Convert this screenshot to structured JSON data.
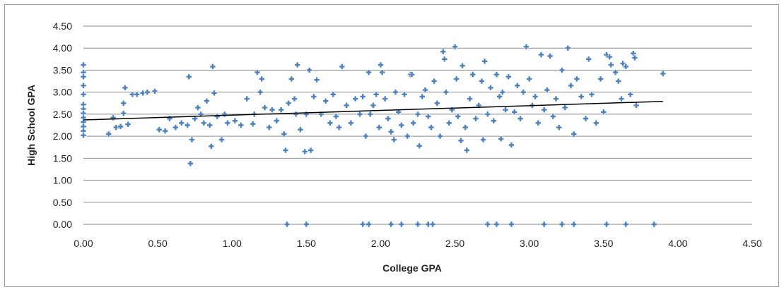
{
  "chart_data": {
    "type": "scatter",
    "xlabel": "College GPA",
    "ylabel": "High School GPA",
    "xlim": [
      0,
      4.5
    ],
    "ylim": [
      0,
      4.5
    ],
    "x_ticks": [
      "0.00",
      "0.50",
      "1.00",
      "1.50",
      "2.00",
      "2.50",
      "3.00",
      "3.50",
      "4.00",
      "4.50"
    ],
    "y_ticks": [
      "0.00",
      "0.50",
      "1.00",
      "1.50",
      "2.00",
      "2.50",
      "3.00",
      "3.50",
      "4.00",
      "4.50"
    ],
    "grid": "horizontal",
    "legend": "none",
    "marker_color": "#4f81bd",
    "trendline": {
      "color": "#000000",
      "x": [
        0,
        3.9
      ],
      "y": [
        2.37,
        2.79
      ]
    },
    "series": [
      {
        "points": [
          [
            0.0,
            3.62
          ],
          [
            0.0,
            3.45
          ],
          [
            0.0,
            3.35
          ],
          [
            0.0,
            3.15
          ],
          [
            0.0,
            2.95
          ],
          [
            0.0,
            2.72
          ],
          [
            0.0,
            2.62
          ],
          [
            0.0,
            2.52
          ],
          [
            0.0,
            2.42
          ],
          [
            0.0,
            2.32
          ],
          [
            0.0,
            2.22
          ],
          [
            0.0,
            2.12
          ],
          [
            0.0,
            2.02
          ],
          [
            0.17,
            2.05
          ],
          [
            0.2,
            2.42
          ],
          [
            0.22,
            2.2
          ],
          [
            0.25,
            2.22
          ],
          [
            0.27,
            2.52
          ],
          [
            0.27,
            2.75
          ],
          [
            0.28,
            3.1
          ],
          [
            0.3,
            2.27
          ],
          [
            0.33,
            2.95
          ],
          [
            0.36,
            2.95
          ],
          [
            0.4,
            2.98
          ],
          [
            0.43,
            3.0
          ],
          [
            0.48,
            3.02
          ],
          [
            0.51,
            2.15
          ],
          [
            0.55,
            2.12
          ],
          [
            0.58,
            2.4
          ],
          [
            0.62,
            2.2
          ],
          [
            0.66,
            2.3
          ],
          [
            0.7,
            2.25
          ],
          [
            0.71,
            3.35
          ],
          [
            0.72,
            1.38
          ],
          [
            0.73,
            1.92
          ],
          [
            0.75,
            2.4
          ],
          [
            0.77,
            2.65
          ],
          [
            0.79,
            2.5
          ],
          [
            0.81,
            2.3
          ],
          [
            0.83,
            2.8
          ],
          [
            0.85,
            2.25
          ],
          [
            0.86,
            1.77
          ],
          [
            0.87,
            3.58
          ],
          [
            0.88,
            2.98
          ],
          [
            0.9,
            2.45
          ],
          [
            0.93,
            1.92
          ],
          [
            0.95,
            2.5
          ],
          [
            0.97,
            2.3
          ],
          [
            1.02,
            2.35
          ],
          [
            1.06,
            2.25
          ],
          [
            1.1,
            2.85
          ],
          [
            1.14,
            2.28
          ],
          [
            1.15,
            2.5
          ],
          [
            1.17,
            3.45
          ],
          [
            1.19,
            3.0
          ],
          [
            1.2,
            3.3
          ],
          [
            1.22,
            2.65
          ],
          [
            1.25,
            2.2
          ],
          [
            1.27,
            2.6
          ],
          [
            1.3,
            2.35
          ],
          [
            1.33,
            2.6
          ],
          [
            1.35,
            2.05
          ],
          [
            1.36,
            1.68
          ],
          [
            1.38,
            2.75
          ],
          [
            1.4,
            3.3
          ],
          [
            1.42,
            2.85
          ],
          [
            1.43,
            2.5
          ],
          [
            1.44,
            3.62
          ],
          [
            1.46,
            2.15
          ],
          [
            1.49,
            1.65
          ],
          [
            1.5,
            2.5
          ],
          [
            1.52,
            3.5
          ],
          [
            1.53,
            1.68
          ],
          [
            1.55,
            2.9
          ],
          [
            1.57,
            3.28
          ],
          [
            1.6,
            2.5
          ],
          [
            1.63,
            2.8
          ],
          [
            1.66,
            2.3
          ],
          [
            1.68,
            2.95
          ],
          [
            1.7,
            2.45
          ],
          [
            1.72,
            2.2
          ],
          [
            1.74,
            3.58
          ],
          [
            1.77,
            2.7
          ],
          [
            1.8,
            2.3
          ],
          [
            1.83,
            2.85
          ],
          [
            1.86,
            2.5
          ],
          [
            1.88,
            2.9
          ],
          [
            1.9,
            2.0
          ],
          [
            1.92,
            3.45
          ],
          [
            1.93,
            2.5
          ],
          [
            1.95,
            2.7
          ],
          [
            1.97,
            2.95
          ],
          [
            1.99,
            2.2
          ],
          [
            2.0,
            3.62
          ],
          [
            2.01,
            3.45
          ],
          [
            2.03,
            2.85
          ],
          [
            2.05,
            2.4
          ],
          [
            2.07,
            2.1
          ],
          [
            2.09,
            1.92
          ],
          [
            2.1,
            3.0
          ],
          [
            2.12,
            2.55
          ],
          [
            2.14,
            2.25
          ],
          [
            2.16,
            2.95
          ],
          [
            2.18,
            2.0
          ],
          [
            2.2,
            3.4
          ],
          [
            2.21,
            3.4
          ],
          [
            2.22,
            2.3
          ],
          [
            2.25,
            2.5
          ],
          [
            2.26,
            1.78
          ],
          [
            2.28,
            2.9
          ],
          [
            2.3,
            3.05
          ],
          [
            2.32,
            2.45
          ],
          [
            2.34,
            2.2
          ],
          [
            2.36,
            3.25
          ],
          [
            2.38,
            2.75
          ],
          [
            2.4,
            2.0
          ],
          [
            2.42,
            3.92
          ],
          [
            2.43,
            3.75
          ],
          [
            2.44,
            3.0
          ],
          [
            2.46,
            2.3
          ],
          [
            2.48,
            2.6
          ],
          [
            2.5,
            4.03
          ],
          [
            2.51,
            3.3
          ],
          [
            2.52,
            2.45
          ],
          [
            2.54,
            1.9
          ],
          [
            2.55,
            3.6
          ],
          [
            2.57,
            2.2
          ],
          [
            2.58,
            1.68
          ],
          [
            2.6,
            2.85
          ],
          [
            2.62,
            3.4
          ],
          [
            2.64,
            2.4
          ],
          [
            2.66,
            2.7
          ],
          [
            2.68,
            3.25
          ],
          [
            2.69,
            1.92
          ],
          [
            2.7,
            3.7
          ],
          [
            2.72,
            2.5
          ],
          [
            2.74,
            3.1
          ],
          [
            2.76,
            2.35
          ],
          [
            2.78,
            3.4
          ],
          [
            2.8,
            2.9
          ],
          [
            2.81,
            1.94
          ],
          [
            2.82,
            3.0
          ],
          [
            2.84,
            2.6
          ],
          [
            2.86,
            3.35
          ],
          [
            2.88,
            1.8
          ],
          [
            2.9,
            2.55
          ],
          [
            2.92,
            3.15
          ],
          [
            2.94,
            2.4
          ],
          [
            2.96,
            3.0
          ],
          [
            2.98,
            4.03
          ],
          [
            3.0,
            3.3
          ],
          [
            3.02,
            2.7
          ],
          [
            3.04,
            2.9
          ],
          [
            3.06,
            2.3
          ],
          [
            3.08,
            3.85
          ],
          [
            3.1,
            2.6
          ],
          [
            3.12,
            3.05
          ],
          [
            3.14,
            3.82
          ],
          [
            3.16,
            2.45
          ],
          [
            3.18,
            2.85
          ],
          [
            3.2,
            2.2
          ],
          [
            3.22,
            3.5
          ],
          [
            3.24,
            2.65
          ],
          [
            3.26,
            4.0
          ],
          [
            3.28,
            3.15
          ],
          [
            3.3,
            2.05
          ],
          [
            3.32,
            3.3
          ],
          [
            3.35,
            2.9
          ],
          [
            3.38,
            2.4
          ],
          [
            3.4,
            3.75
          ],
          [
            3.42,
            2.95
          ],
          [
            3.45,
            2.3
          ],
          [
            3.48,
            3.3
          ],
          [
            3.5,
            2.55
          ],
          [
            3.52,
            3.85
          ],
          [
            3.54,
            3.8
          ],
          [
            3.55,
            3.62
          ],
          [
            3.58,
            3.45
          ],
          [
            3.6,
            3.25
          ],
          [
            3.62,
            2.85
          ],
          [
            3.63,
            3.65
          ],
          [
            3.65,
            3.58
          ],
          [
            3.68,
            2.95
          ],
          [
            3.7,
            3.88
          ],
          [
            3.71,
            3.78
          ],
          [
            3.72,
            2.7
          ],
          [
            3.9,
            3.42
          ],
          [
            1.37,
            0
          ],
          [
            1.5,
            0
          ],
          [
            1.88,
            0
          ],
          [
            1.92,
            0
          ],
          [
            2.07,
            0
          ],
          [
            2.14,
            0
          ],
          [
            2.25,
            0
          ],
          [
            2.32,
            0
          ],
          [
            2.35,
            0
          ],
          [
            2.72,
            0
          ],
          [
            2.78,
            0
          ],
          [
            2.88,
            0
          ],
          [
            3.1,
            0
          ],
          [
            3.22,
            0
          ],
          [
            3.3,
            0
          ],
          [
            3.52,
            0
          ],
          [
            3.65,
            0
          ],
          [
            3.84,
            0
          ]
        ]
      }
    ]
  }
}
